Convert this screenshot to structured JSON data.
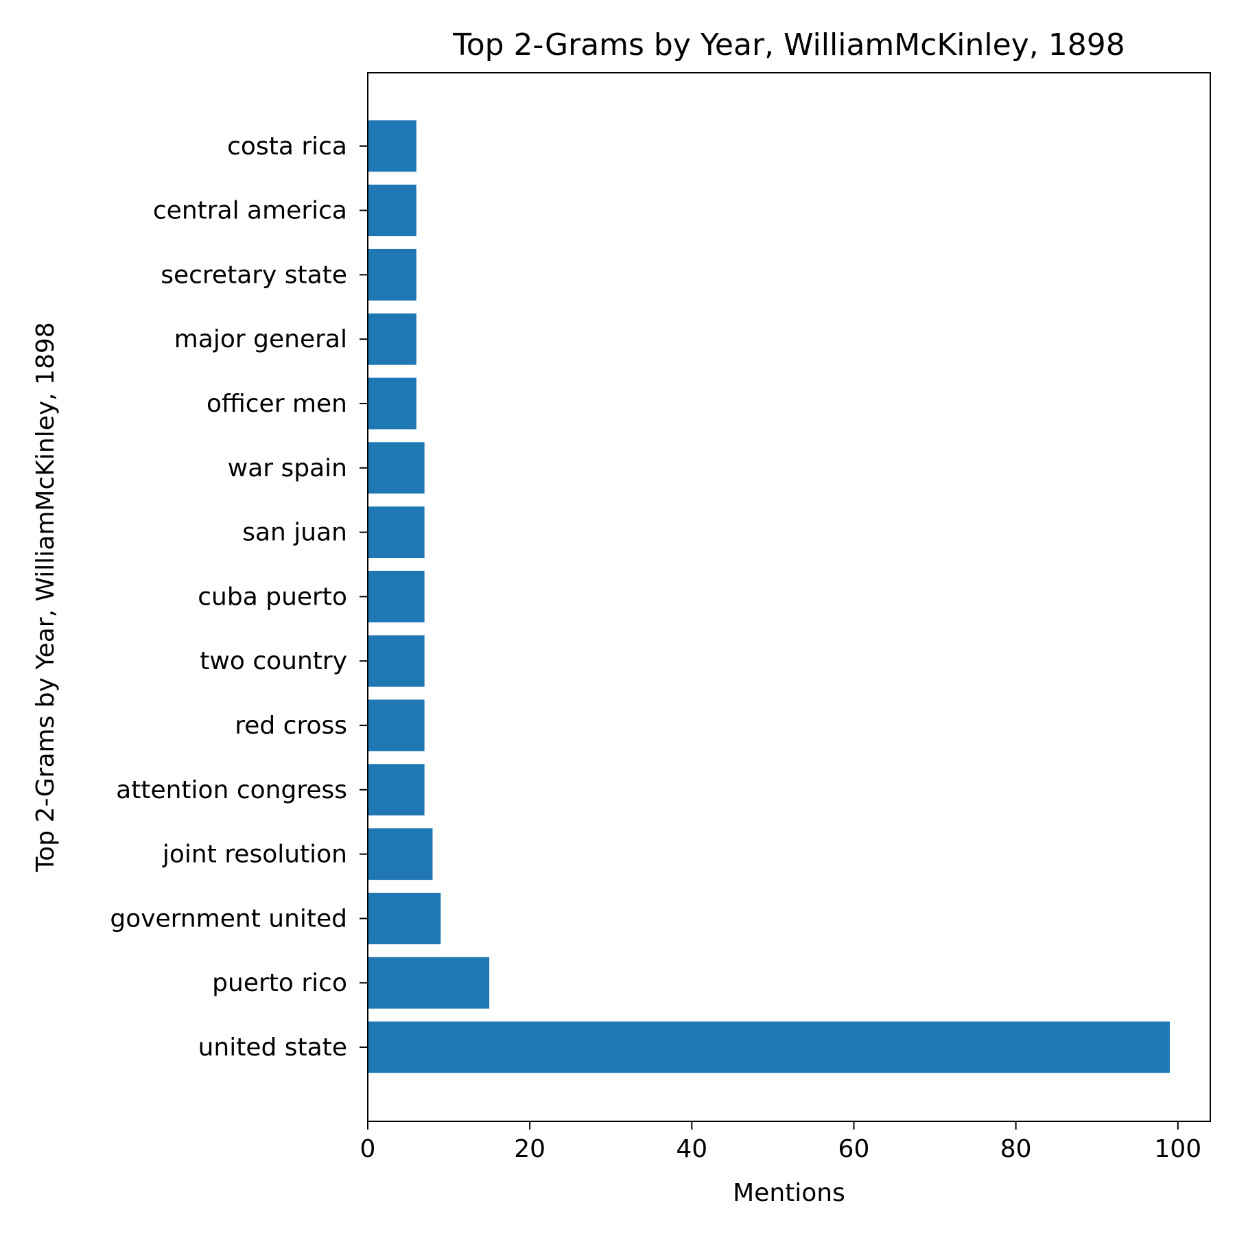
{
  "chart_data": {
    "type": "bar",
    "orientation": "horizontal",
    "title": "Top 2-Grams by Year, WilliamMcKinley, 1898",
    "xlabel": "Mentions",
    "ylabel": "Top 2-Grams by Year, WilliamMcKinley, 1898",
    "categories": [
      "united state",
      "puerto rico",
      "government united",
      "joint resolution",
      "attention congress",
      "red cross",
      "two country",
      "cuba puerto",
      "san juan",
      "war spain",
      "officer men",
      "major general",
      "secretary state",
      "central america",
      "costa rica"
    ],
    "values": [
      99,
      15,
      9,
      8,
      7,
      7,
      7,
      7,
      7,
      7,
      6,
      6,
      6,
      6,
      6
    ],
    "xlim": [
      0,
      104
    ],
    "xticks": [
      0,
      20,
      40,
      60,
      80,
      100
    ],
    "grid": false,
    "legend": "none",
    "bar_color": "#1f77b4"
  }
}
